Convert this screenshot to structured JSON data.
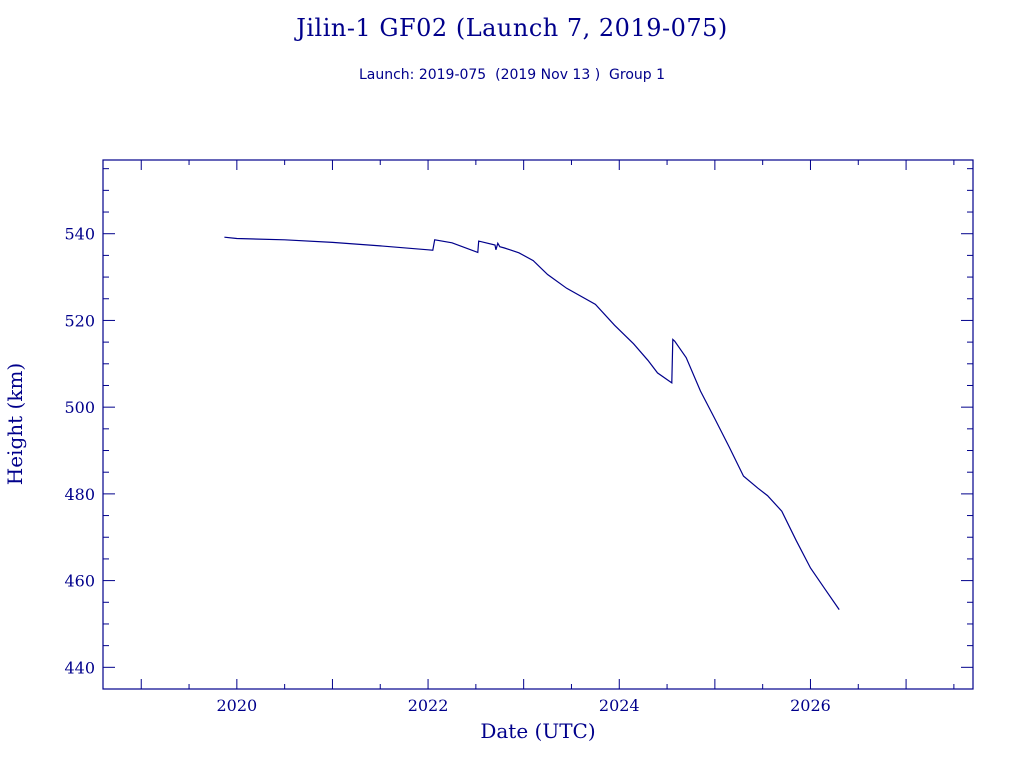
{
  "title": "Jilin-1 GF02 (Launch 7, 2019-075)",
  "subtitle": "Launch: 2019-075  (2019 Nov 13 )  Group 1",
  "colors": {
    "ink": "#00008b",
    "background": "#ffffff"
  },
  "chart_data": {
    "type": "line",
    "title": "Jilin-1 GF02 (Launch 7, 2019-075)",
    "xlabel": "Date (UTC)",
    "ylabel": "Height (km)",
    "xlim": [
      2018.6,
      2027.7
    ],
    "ylim": [
      435,
      557
    ],
    "x_ticks": [
      2020,
      2022,
      2024,
      2026
    ],
    "y_ticks": [
      440,
      460,
      480,
      500,
      520,
      540
    ],
    "grid": false,
    "series": [
      {
        "x": [
          2019.87,
          2020.0,
          2020.5,
          2021.0,
          2021.5,
          2022.0,
          2022.05,
          2022.07,
          2022.25,
          2022.52,
          2022.53,
          2022.7,
          2022.71,
          2022.73,
          2022.75,
          2022.8,
          2022.95,
          2023.1,
          2023.25,
          2023.45,
          2023.75,
          2023.95,
          2024.15,
          2024.3,
          2024.4,
          2024.55,
          2024.56,
          2024.58,
          2024.7,
          2024.85,
          2025.0,
          2025.15,
          2025.3,
          2025.45,
          2025.55,
          2025.7,
          2025.85,
          2026.0,
          2026.15,
          2026.3
        ],
        "y": [
          539.2,
          538.9,
          538.6,
          538.0,
          537.2,
          536.3,
          536.2,
          538.6,
          537.9,
          535.7,
          538.3,
          537.4,
          536.3,
          537.8,
          537.0,
          536.7,
          535.6,
          533.8,
          530.6,
          527.4,
          523.7,
          518.9,
          514.6,
          510.8,
          507.9,
          505.6,
          515.6,
          515.2,
          511.4,
          503.7,
          497.3,
          490.8,
          484.1,
          481.3,
          479.6,
          476.0,
          469.3,
          462.9,
          458.1,
          453.3
        ]
      }
    ]
  }
}
